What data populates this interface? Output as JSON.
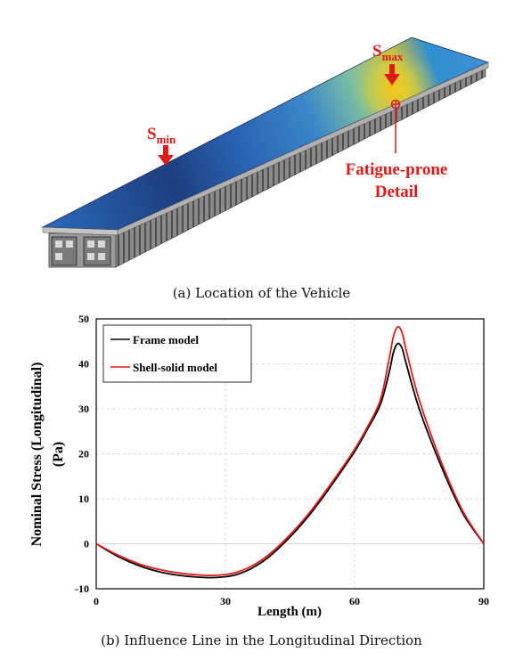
{
  "figure_a": {
    "smin_label": "S",
    "smin_sub": "min",
    "smax_label": "S",
    "smax_sub": "max",
    "detail_line1": "Fatigue-prone",
    "detail_line2": "Detail",
    "caption": "(a) Location of the Vehicle",
    "colors": {
      "deck_dark": "#1f3f7a",
      "deck_mid": "#2f6fc2",
      "hotspot": "#f2c21a",
      "marker": "#e01a1a"
    }
  },
  "figure_b": {
    "caption": "(b) Influence Line in the Longitudinal Direction"
  },
  "chart_data": {
    "type": "line",
    "title": "",
    "xlabel": "Length (m)",
    "ylabel_line1": "Nominal Stress (Longitudinal)",
    "ylabel_line2": "(Pa)",
    "xlim": [
      0,
      90
    ],
    "ylim": [
      -10,
      50
    ],
    "xticks": [
      0,
      30,
      60,
      90
    ],
    "yticks": [
      -10,
      0,
      10,
      20,
      30,
      40,
      50
    ],
    "grid": true,
    "legend_position": "top-left",
    "series": [
      {
        "name": "Frame model",
        "color": "#000000",
        "x": [
          0,
          5,
          10,
          15,
          20,
          25,
          28,
          32,
          36,
          40,
          45,
          50,
          55,
          60,
          63,
          66,
          68,
          69,
          70,
          71,
          72,
          75,
          80,
          85,
          90
        ],
        "y": [
          0,
          -2.8,
          -4.9,
          -6.3,
          -7.1,
          -7.5,
          -7.5,
          -7.0,
          -5.5,
          -3.0,
          1.5,
          7.0,
          13.5,
          20.5,
          25.5,
          31.0,
          38.0,
          42.5,
          44.5,
          43.5,
          40.0,
          30.0,
          17.5,
          7.0,
          0
        ]
      },
      {
        "name": "Shell-solid model",
        "color": "#e01b1b",
        "x": [
          0,
          5,
          10,
          15,
          20,
          25,
          28,
          32,
          36,
          40,
          45,
          50,
          55,
          60,
          63,
          66,
          68,
          69,
          70,
          71,
          72,
          75,
          80,
          85,
          90
        ],
        "y": [
          0,
          -2.5,
          -4.5,
          -5.8,
          -6.6,
          -7.0,
          -7.0,
          -6.5,
          -5.0,
          -2.5,
          2.0,
          7.5,
          14.0,
          21.0,
          26.0,
          32.0,
          41.0,
          46.0,
          48.2,
          47.0,
          43.0,
          32.0,
          18.5,
          7.5,
          0
        ]
      }
    ]
  }
}
